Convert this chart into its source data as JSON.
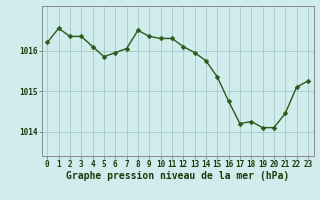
{
  "x": [
    0,
    1,
    2,
    3,
    4,
    5,
    6,
    7,
    8,
    9,
    10,
    11,
    12,
    13,
    14,
    15,
    16,
    17,
    18,
    19,
    20,
    21,
    22,
    23
  ],
  "y": [
    1016.2,
    1016.55,
    1016.35,
    1016.35,
    1016.1,
    1015.85,
    1015.95,
    1016.05,
    1016.5,
    1016.35,
    1016.3,
    1016.3,
    1016.1,
    1015.95,
    1015.75,
    1015.35,
    1014.75,
    1014.2,
    1014.25,
    1014.1,
    1014.1,
    1014.45,
    1015.1,
    1015.25
  ],
  "line_color": "#2d5a1b",
  "marker": "D",
  "marker_size": 2.5,
  "bg_color": "#d0ecec",
  "grid_color": "#a8c8c8",
  "axis_color": "#888888",
  "xlabel": "Graphe pression niveau de la mer (hPa)",
  "xlabel_color": "#1a3a0a",
  "xlabel_fontsize": 7,
  "tick_color": "#1a3a0a",
  "tick_fontsize": 5.5,
  "yticks": [
    1014,
    1015,
    1016
  ],
  "ylim": [
    1013.4,
    1017.1
  ],
  "xlim": [
    -0.5,
    23.5
  ],
  "linewidth": 1.0
}
